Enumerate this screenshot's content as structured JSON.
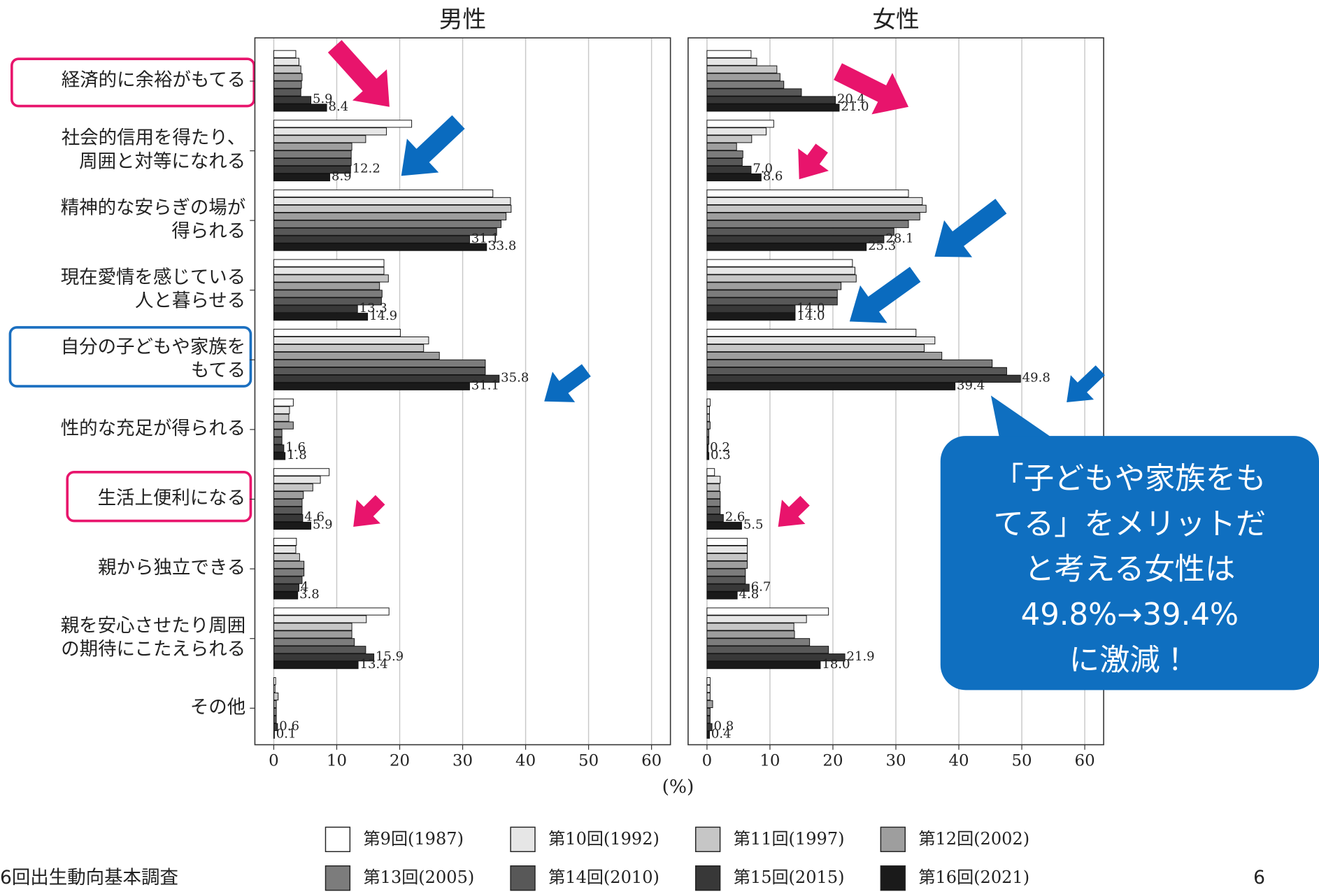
{
  "chart_data": [
    {
      "type": "bar",
      "orientation": "horizontal",
      "title": "男性",
      "xlabel": "(%)",
      "categories": [
        [
          "経済的に余裕がもてる"
        ],
        [
          "社会的信用を得たり、",
          "周囲と対等になれる"
        ],
        [
          "精神的な安らぎの場が",
          "得られる"
        ],
        [
          "現在愛情を感じている",
          "人と暮らせる"
        ],
        [
          "自分の子どもや家族を",
          "もてる"
        ],
        [
          "性的な充足が得られる"
        ],
        [
          "生活上便利になる"
        ],
        [
          "親から独立できる"
        ],
        [
          "親を安心させたり周囲",
          "の期待にこたえられる"
        ],
        [
          "その他"
        ]
      ],
      "xlim": [
        -3,
        63
      ],
      "xticks": [
        0,
        10,
        20,
        30,
        40,
        50,
        60
      ],
      "grid": true,
      "series": [
        {
          "name": "第9回(1987)",
          "color": "#ffffff",
          "values": [
            3.5,
            21.9,
            34.8,
            17.5,
            20.1,
            3.1,
            8.8,
            3.6,
            18.3,
            0.3
          ]
        },
        {
          "name": "第10回(1992)",
          "color": "#e6e6e6",
          "values": [
            4.0,
            17.9,
            37.6,
            17.5,
            24.6,
            2.5,
            7.4,
            3.5,
            14.7,
            0.2
          ]
        },
        {
          "name": "第11回(1997)",
          "color": "#c6c6c6",
          "values": [
            4.3,
            14.6,
            37.7,
            18.2,
            23.8,
            2.4,
            6.2,
            4.1,
            12.4,
            0.7
          ]
        },
        {
          "name": "第12回(2002)",
          "color": "#9e9e9e",
          "values": [
            4.5,
            12.4,
            36.9,
            16.8,
            26.3,
            3.1,
            4.7,
            4.8,
            12.4,
            0.4
          ]
        },
        {
          "name": "第13回(2005)",
          "color": "#7c7c7c",
          "values": [
            4.4,
            12.3,
            36.1,
            17.2,
            33.6,
            1.3,
            4.5,
            4.8,
            12.8,
            0.4
          ]
        },
        {
          "name": "第14回(2010)",
          "color": "#585858",
          "values": [
            4.3,
            12.3,
            35.4,
            17.1,
            33.6,
            1.3,
            4.5,
            4.5,
            14.6,
            0.4
          ]
        },
        {
          "name": "第15回(2015)",
          "color": "#383838",
          "show_values": true,
          "values": [
            5.9,
            12.2,
            31.1,
            13.3,
            35.8,
            1.6,
            4.6,
            4.0,
            15.9,
            0.6
          ]
        },
        {
          "name": "第16回(2021)",
          "color": "#1a1a1a",
          "show_values": true,
          "values": [
            8.4,
            8.9,
            33.8,
            14.9,
            31.1,
            1.8,
            5.9,
            3.8,
            13.4,
            0.1
          ]
        }
      ]
    },
    {
      "type": "bar",
      "orientation": "horizontal",
      "title": "女性",
      "xlim": [
        -3,
        63
      ],
      "xticks": [
        0,
        10,
        20,
        30,
        40,
        50,
        60
      ],
      "grid": true,
      "series": [
        {
          "values": [
            7.0,
            10.6,
            32.0,
            23.1,
            33.2,
            0.5,
            1.2,
            6.4,
            19.3,
            0.5
          ]
        },
        {
          "values": [
            7.9,
            9.4,
            34.2,
            23.5,
            36.2,
            0.4,
            2.1,
            6.4,
            15.8,
            0.5
          ]
        },
        {
          "values": [
            11.1,
            7.1,
            34.8,
            23.7,
            34.5,
            0.4,
            2.0,
            6.4,
            13.8,
            0.5
          ]
        },
        {
          "values": [
            11.6,
            4.7,
            33.8,
            21.3,
            37.3,
            0.5,
            2.1,
            6.4,
            13.9,
            0.9
          ]
        },
        {
          "values": [
            12.2,
            5.7,
            32.0,
            20.7,
            45.3,
            0.3,
            2.1,
            6.1,
            16.3,
            0.5
          ]
        },
        {
          "values": [
            15.0,
            5.6,
            29.7,
            20.7,
            47.6,
            0.3,
            2.1,
            6.1,
            19.3,
            0.5
          ]
        },
        {
          "show_values": true,
          "values": [
            20.4,
            7.0,
            28.1,
            14.0,
            49.8,
            0.2,
            2.6,
            6.7,
            21.9,
            0.8
          ],
          "value_labels": [
            "20.4",
            "7.0",
            "28.1",
            "14.0",
            "49.8",
            "0.2",
            "2.6",
            "6.7",
            "21.9",
            "0.8"
          ]
        },
        {
          "show_values": true,
          "values": [
            21.0,
            8.6,
            25.3,
            14.0,
            39.4,
            0.3,
            5.5,
            4.8,
            18.0,
            0.4
          ],
          "value_labels": [
            "21.0",
            "8.6",
            "25.3",
            "14.0",
            "39.4",
            "0.3",
            "5.5",
            "4.8",
            "18.0",
            "0.4"
          ]
        }
      ]
    }
  ],
  "callout": [
    "「子どもや家族をも",
    "てる」をメリットだ",
    "と考える女性は",
    "49.8%→39.4%",
    "に激減！"
  ],
  "source": "6回出生動向基本調査",
  "page_number": "6"
}
